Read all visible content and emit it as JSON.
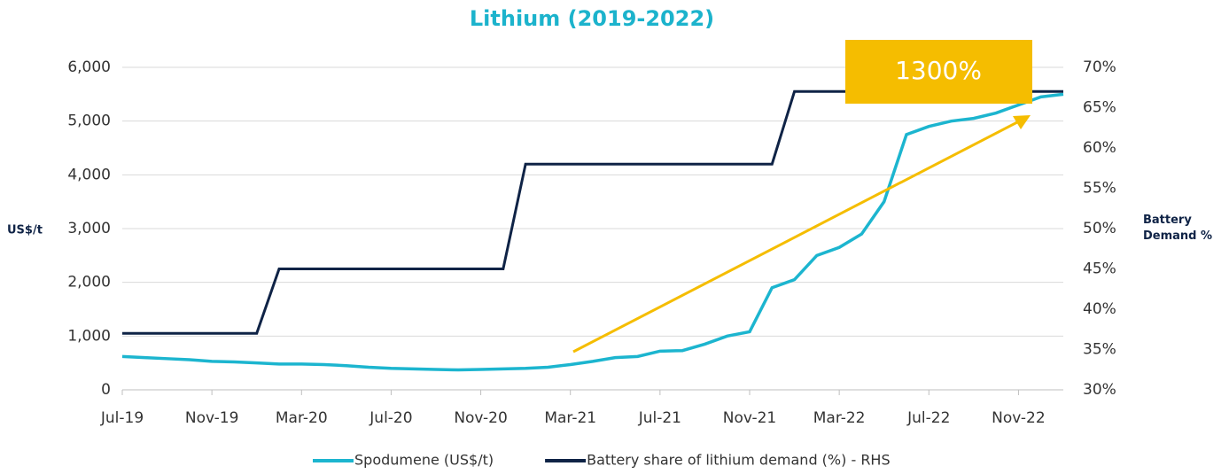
{
  "chart_data": {
    "type": "line",
    "title": "Lithium (2019-2022)",
    "ylabel": "US$/t",
    "y2label": "Battery Demand %",
    "annotation": "1300%",
    "categories": [
      "Jul-19",
      null,
      null,
      null,
      "Nov-19",
      null,
      null,
      null,
      "Mar-20",
      null,
      null,
      null,
      "Jul-20",
      null,
      null,
      null,
      "Nov-20",
      null,
      null,
      null,
      "Mar-21",
      null,
      null,
      null,
      "Jul-21",
      null,
      null,
      null,
      "Nov-21",
      null,
      null,
      null,
      "Mar-22",
      null,
      null,
      null,
      "Jul-22",
      null,
      null,
      null,
      "Nov-22",
      null,
      null
    ],
    "series": [
      {
        "name": "Spodumene (US$/t)",
        "color": "#1cb5cf",
        "values": [
          620,
          600,
          580,
          560,
          530,
          520,
          500,
          480,
          480,
          470,
          450,
          420,
          400,
          390,
          380,
          370,
          380,
          390,
          400,
          420,
          470,
          530,
          600,
          620,
          720,
          730,
          850,
          1000,
          1080,
          1900,
          2050,
          2500,
          2650,
          2900,
          3500,
          4750,
          4900,
          5000,
          5050,
          5150,
          5300,
          5450,
          5500
        ]
      },
      {
        "name": "Battery share of lithium demand (%) - RHS",
        "color": "#0f2346",
        "axis": "y2",
        "values": [
          37,
          37,
          37,
          37,
          37,
          37,
          37,
          45,
          45,
          45,
          45,
          45,
          45,
          45,
          45,
          45,
          45,
          45,
          58,
          58,
          58,
          58,
          58,
          58,
          58,
          58,
          58,
          58,
          58,
          58,
          67,
          67,
          67,
          67,
          67,
          67,
          67,
          67,
          67,
          67,
          67,
          67,
          67
        ]
      }
    ],
    "ylim": [
      0,
      6000
    ],
    "yticks": [
      0,
      {
        "value": 1000,
        "label": "1,000"
      },
      {
        "value": 2000,
        "label": "2,000"
      },
      {
        "value": 3000,
        "label": "3,000"
      },
      {
        "value": 4000,
        "label": "4,000"
      },
      {
        "value": 5000,
        "label": "5,000"
      },
      {
        "value": 6000,
        "label": "6,000"
      }
    ],
    "y2lim": [
      30,
      70
    ],
    "y2ticks": [
      {
        "value": 30,
        "label": "30%"
      },
      {
        "value": 35,
        "label": "35%"
      },
      {
        "value": 40,
        "label": "40%"
      },
      {
        "value": 45,
        "label": "45%"
      },
      {
        "value": 50,
        "label": "50%"
      },
      {
        "value": 55,
        "label": "55%"
      },
      {
        "value": 60,
        "label": "60%"
      },
      {
        "value": 65,
        "label": "65%"
      },
      {
        "value": 70,
        "label": "70%"
      }
    ],
    "grid": true,
    "legend": "bottom"
  }
}
